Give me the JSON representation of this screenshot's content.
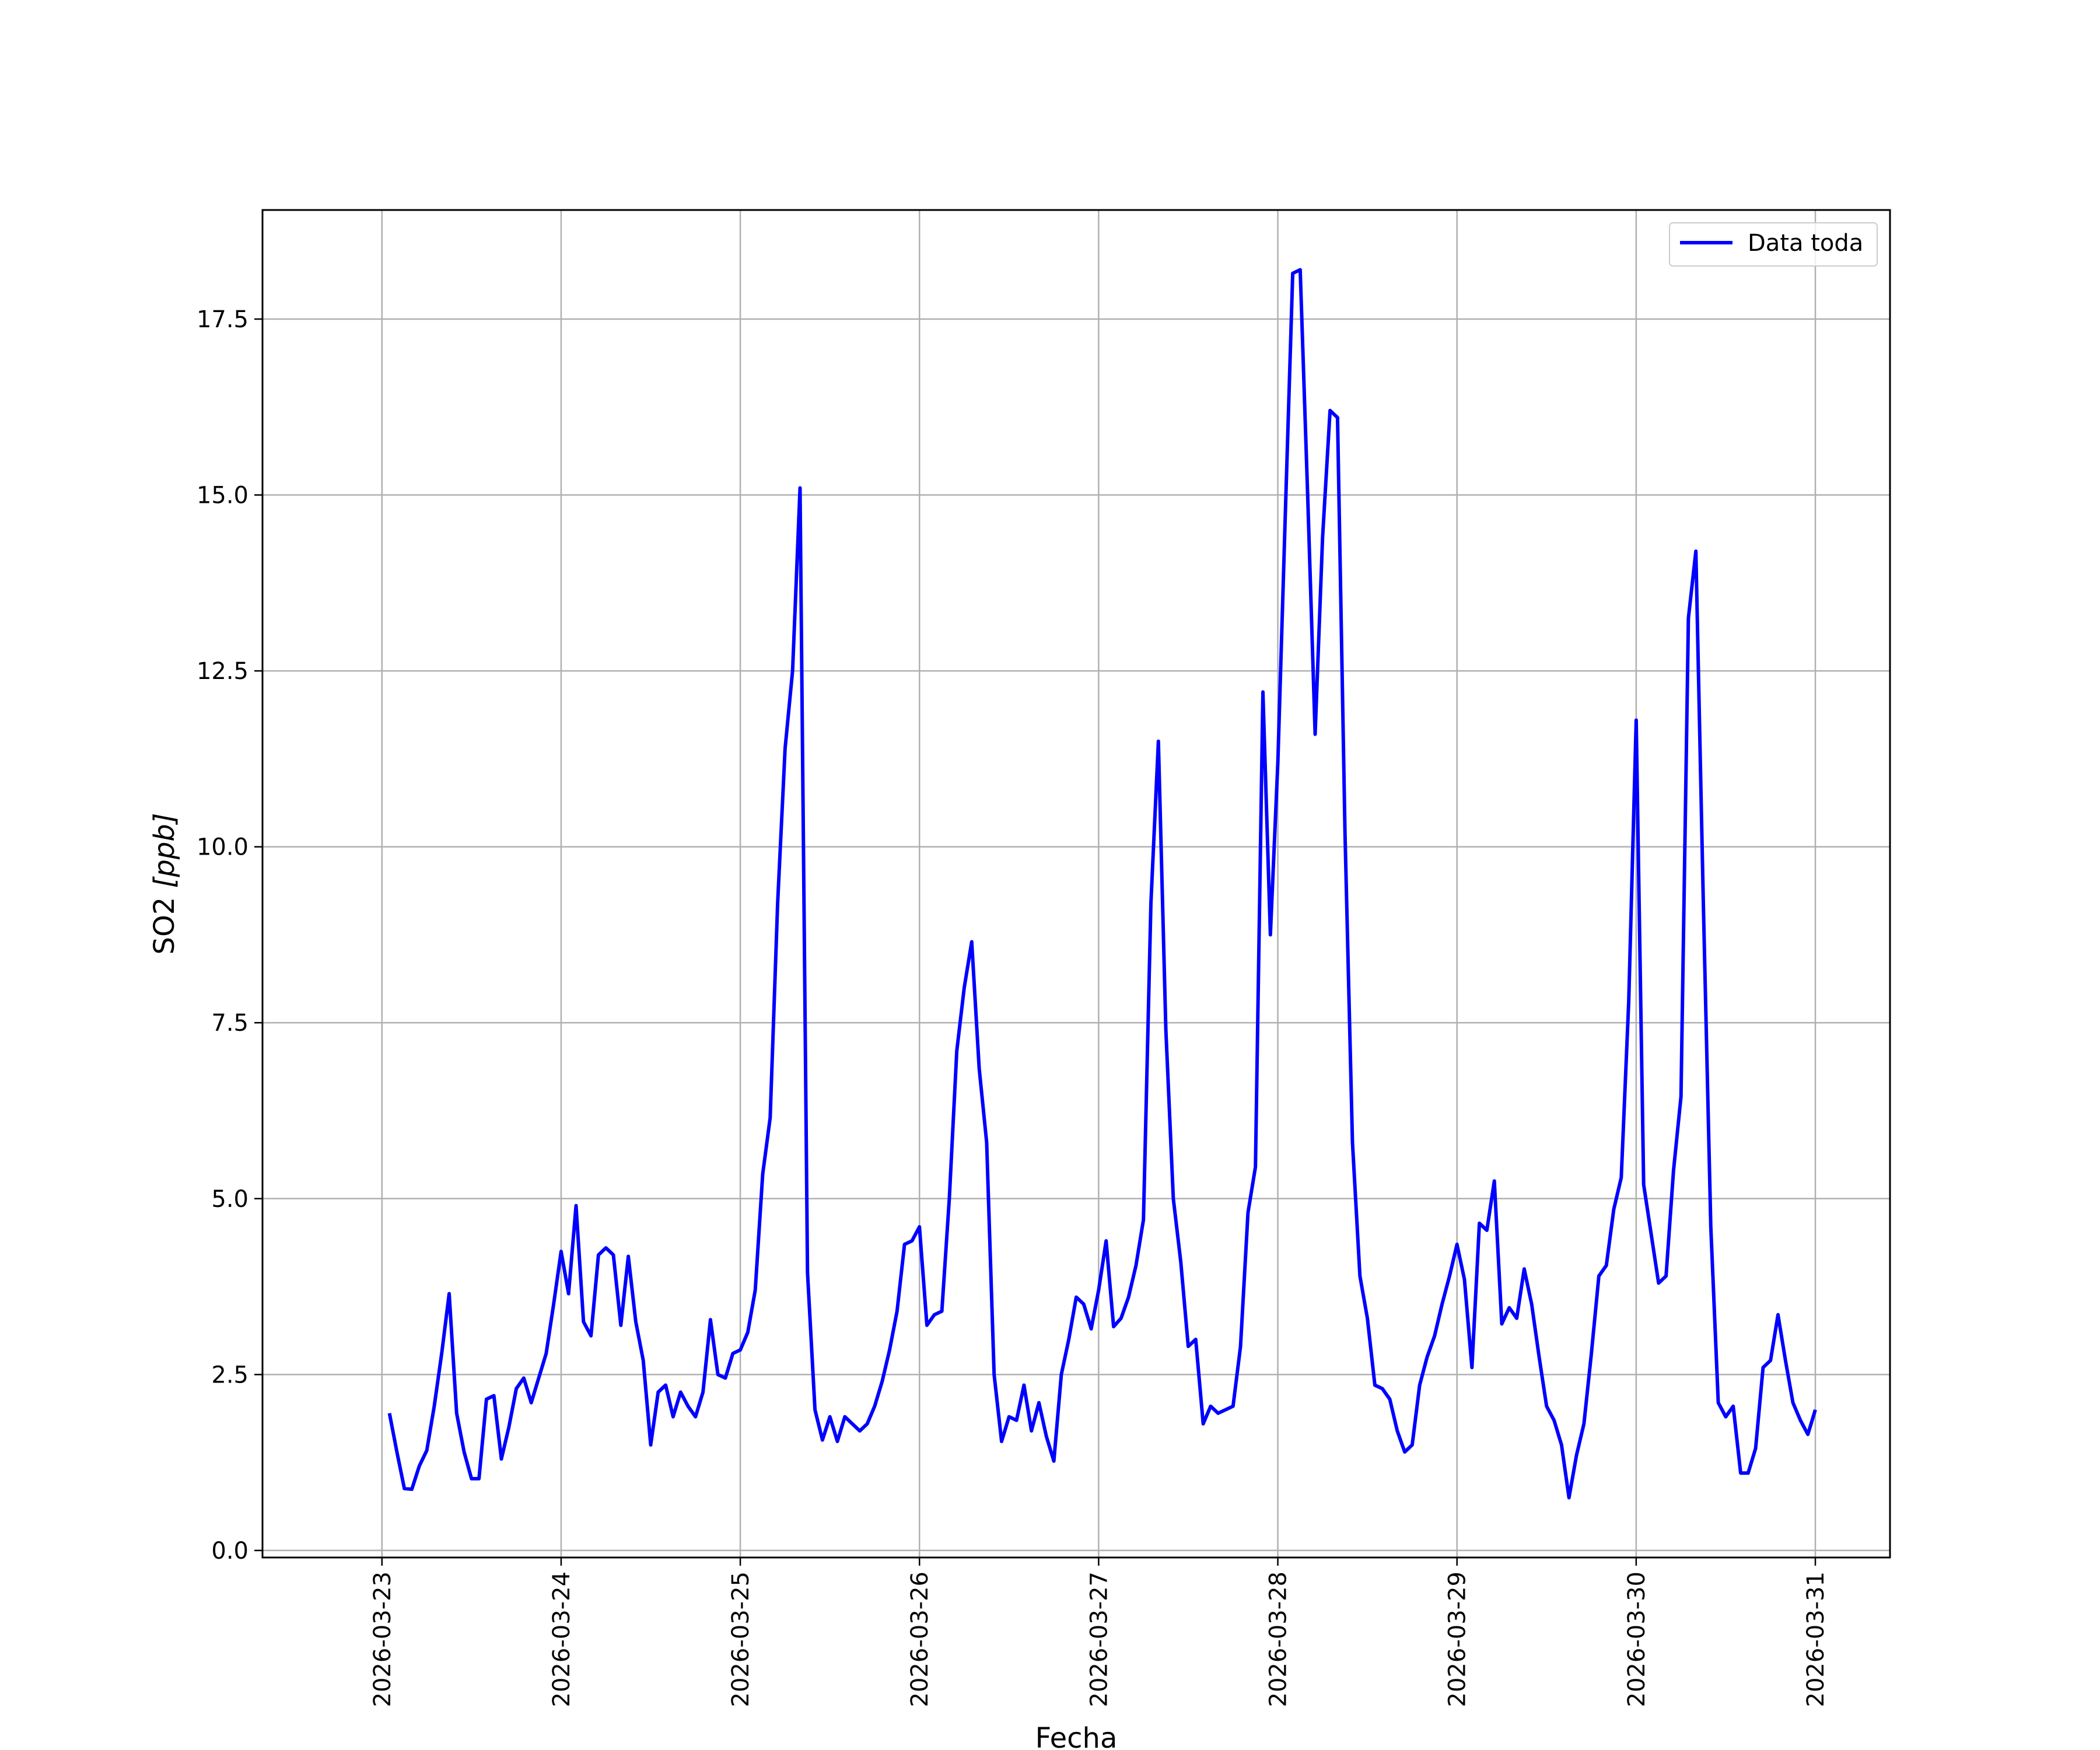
{
  "chart_data": {
    "type": "line",
    "title": "",
    "xlabel": "Fecha",
    "ylabel_text": "SO2 ",
    "ylabel_unit": "[ppb]",
    "x_tick_labels": [
      "2026-03-23",
      "2026-03-24",
      "2026-03-25",
      "2026-03-26",
      "2026-03-27",
      "2026-03-28",
      "2026-03-29",
      "2026-03-30",
      "2026-03-31"
    ],
    "y_ticks": [
      0.0,
      2.5,
      5.0,
      7.5,
      10.0,
      12.5,
      15.0,
      17.5
    ],
    "y_tick_labels": [
      "0.0",
      "2.5",
      "5.0",
      "7.5",
      "10.0",
      "12.5",
      "15.0",
      "17.5"
    ],
    "xlim": [
      "2026-03-22 08:00",
      "2026-03-31 10:00"
    ],
    "ylim": [
      -0.1,
      19.05
    ],
    "grid": true,
    "legend_position": "top-right",
    "series": [
      {
        "name": "Data toda",
        "color": "#0000ff",
        "x_start": "2026-03-23 01:00",
        "x_step_hours": 1,
        "y": [
          1.95,
          1.4,
          0.88,
          0.87,
          1.2,
          1.42,
          2.05,
          2.8,
          3.65,
          1.95,
          1.4,
          1.02,
          1.02,
          2.15,
          2.2,
          1.3,
          1.75,
          2.3,
          2.45,
          2.1,
          2.45,
          2.8,
          3.5,
          4.25,
          3.65,
          4.9,
          3.25,
          3.05,
          4.2,
          4.3,
          4.2,
          3.2,
          4.18,
          3.25,
          2.7,
          1.5,
          2.25,
          2.35,
          1.9,
          2.25,
          2.05,
          1.9,
          2.25,
          3.28,
          2.5,
          2.45,
          2.8,
          2.85,
          3.1,
          3.7,
          5.35,
          6.15,
          9.2,
          11.4,
          12.5,
          15.1,
          3.95,
          2.0,
          1.57,
          1.9,
          1.55,
          1.9,
          1.8,
          1.7,
          1.8,
          2.05,
          2.4,
          2.85,
          3.4,
          4.35,
          4.4,
          4.6,
          3.2,
          3.35,
          3.4,
          5.0,
          7.1,
          8.0,
          8.65,
          6.85,
          5.8,
          2.5,
          1.55,
          1.9,
          1.85,
          2.35,
          1.7,
          2.1,
          1.62,
          1.27,
          2.5,
          3.0,
          3.6,
          3.5,
          3.15,
          3.7,
          4.4,
          3.18,
          3.3,
          3.6,
          4.05,
          4.7,
          9.2,
          11.5,
          7.4,
          5.0,
          4.1,
          2.9,
          3.0,
          1.8,
          2.05,
          1.95,
          2.0,
          2.05,
          2.9,
          4.8,
          5.45,
          12.2,
          8.75,
          11.2,
          14.7,
          18.15,
          18.2,
          15.0,
          11.6,
          14.4,
          16.2,
          16.1,
          10.2,
          5.8,
          3.9,
          3.3,
          2.35,
          2.3,
          2.15,
          1.7,
          1.4,
          1.5,
          2.35,
          2.75,
          3.05,
          3.5,
          3.9,
          4.35,
          3.85,
          2.6,
          4.65,
          4.55,
          5.25,
          3.22,
          3.45,
          3.3,
          4.0,
          3.5,
          2.75,
          2.05,
          1.85,
          1.5,
          0.75,
          1.35,
          1.8,
          2.8,
          3.9,
          4.05,
          4.85,
          5.3,
          7.8,
          11.8,
          5.2,
          4.5,
          3.8,
          3.9,
          5.4,
          6.45,
          13.25,
          14.2,
          9.2,
          4.6,
          2.1,
          1.9,
          2.05,
          1.1,
          1.1,
          1.45,
          2.6,
          2.7,
          3.35,
          2.7,
          2.1,
          1.85,
          1.65,
          2.0
        ]
      }
    ]
  }
}
